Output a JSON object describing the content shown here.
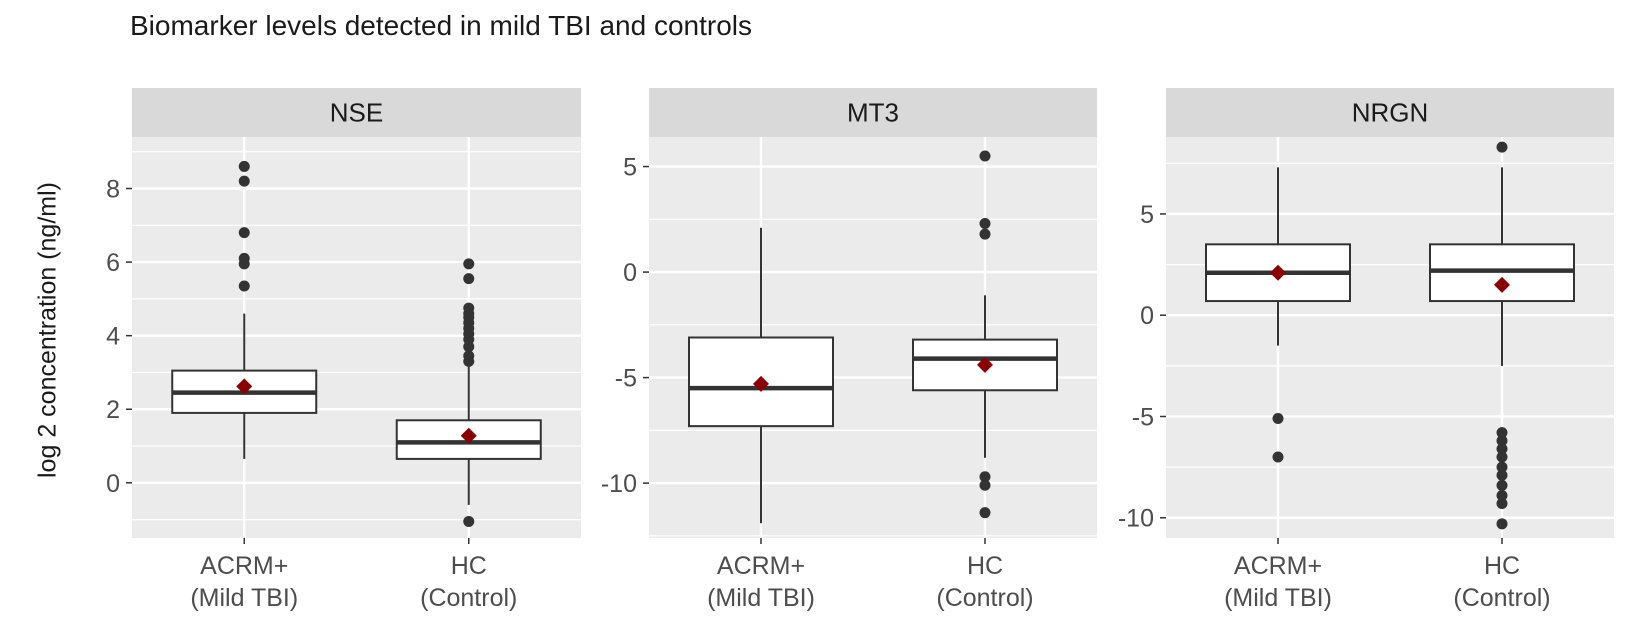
{
  "chart_data": {
    "type": "box",
    "title": "Biomarker levels detected in mild TBI and controls",
    "ylabel": "log 2 concentration (ng/ml)",
    "categories": [
      "ACRM+\n(Mild TBI)",
      "HC\n(Control)"
    ],
    "colors": {
      "panel_bg": "#ebebeb",
      "strip_bg": "#d9d9d9",
      "grid": "#ffffff",
      "box_fill": "#ffffff",
      "box_line": "#333333",
      "mean_marker": "#8b0000",
      "outlier": "#333333"
    },
    "legend": "none",
    "panels": [
      {
        "name": "NSE",
        "ylim": [
          -1.5,
          9.4
        ],
        "ticks": [
          0,
          2,
          4,
          6,
          8
        ],
        "groups": [
          {
            "category": "ACRM+\n(Mild TBI)",
            "whisker_low": 0.65,
            "q1": 1.9,
            "median": 2.45,
            "q3": 3.05,
            "whisker_high": 4.6,
            "mean": 2.62,
            "outliers": [
              5.35,
              5.95,
              6.1,
              6.8,
              8.2,
              8.6
            ]
          },
          {
            "category": "HC\n(Control)",
            "whisker_low": -0.6,
            "q1": 0.65,
            "median": 1.1,
            "q3": 1.7,
            "whisker_high": 3.2,
            "mean": 1.28,
            "outliers": [
              -1.05,
              3.3,
              3.45,
              3.7,
              3.9,
              4.05,
              4.2,
              4.35,
              4.5,
              4.6,
              4.75,
              5.55,
              5.95
            ]
          }
        ]
      },
      {
        "name": "MT3",
        "ylim": [
          -12.6,
          6.4
        ],
        "ticks": [
          -10,
          -5,
          0,
          5
        ],
        "groups": [
          {
            "category": "ACRM+\n(Mild TBI)",
            "whisker_low": -11.9,
            "q1": -7.3,
            "median": -5.5,
            "q3": -3.1,
            "whisker_high": 2.1,
            "mean": -5.3,
            "outliers": []
          },
          {
            "category": "HC\n(Control)",
            "whisker_low": -8.8,
            "q1": -5.6,
            "median": -4.1,
            "q3": -3.2,
            "whisker_high": -1.1,
            "mean": -4.4,
            "outliers": [
              -11.4,
              -10.1,
              -9.7,
              1.8,
              2.3,
              5.5
            ]
          }
        ]
      },
      {
        "name": "NRGN",
        "ylim": [
          -11.0,
          8.8
        ],
        "ticks": [
          -10,
          -5,
          0,
          5
        ],
        "groups": [
          {
            "category": "ACRM+\n(Mild TBI)",
            "whisker_low": -1.5,
            "q1": 0.7,
            "median": 2.1,
            "q3": 3.5,
            "whisker_high": 7.3,
            "mean": 2.1,
            "outliers": [
              -7.0,
              -5.1
            ]
          },
          {
            "category": "HC\n(Control)",
            "whisker_low": -2.5,
            "q1": 0.7,
            "median": 2.2,
            "q3": 3.5,
            "whisker_high": 7.3,
            "mean": 1.5,
            "outliers": [
              -10.3,
              -9.3,
              -8.9,
              -8.4,
              -7.9,
              -7.5,
              -7.0,
              -6.6,
              -6.2,
              -5.8,
              8.3
            ]
          }
        ]
      }
    ]
  }
}
